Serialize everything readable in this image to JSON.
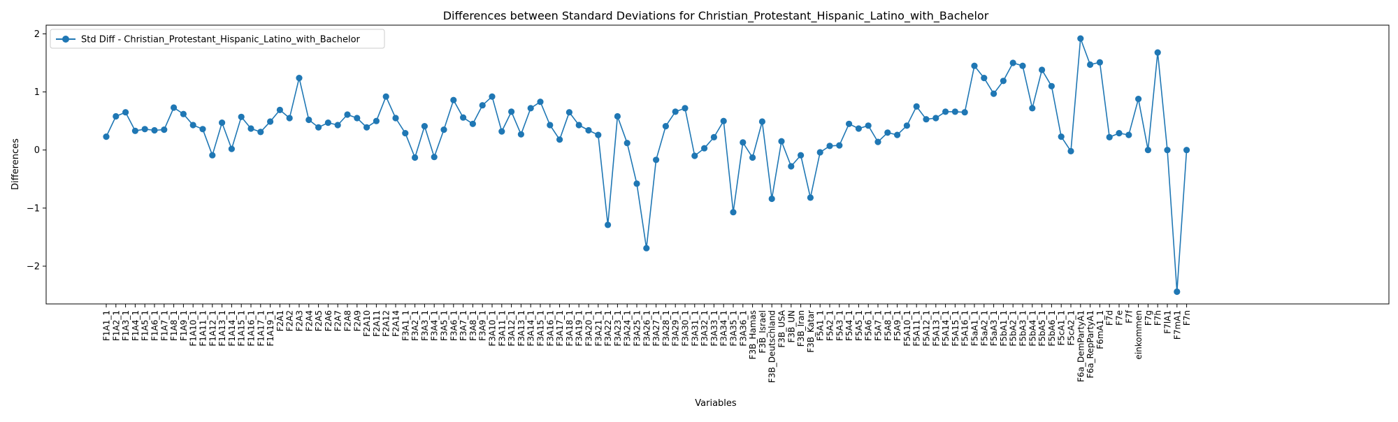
{
  "chart_data": {
    "type": "line",
    "title": "Differences between Standard Deviations for Christian_Protestant_Hispanic_Latino_with_Bachelor",
    "xlabel": "Variables",
    "ylabel": "Differences",
    "ylim": [
      -2.65,
      2.15
    ],
    "yticks": [
      -2,
      -1,
      0,
      1,
      2
    ],
    "ytick_labels": [
      "−2",
      "−1",
      "0",
      "1",
      "2"
    ],
    "grid": false,
    "legend_position": "top-left",
    "color": "#1f77b4",
    "categories": [
      "F1A1_1",
      "F1A2_1",
      "F1A3_1",
      "F1A4_1",
      "F1A5_1",
      "F1A6_1",
      "F1A7_1",
      "F1A8_1",
      "F1A9_1",
      "F1A10_1",
      "F1A11_1",
      "F1A12_1",
      "F1A13_1",
      "F1A14_1",
      "F1A15_1",
      "F1A16_1",
      "F1A17_1",
      "F1A19_1",
      "F2A1",
      "F2A2",
      "F2A3",
      "F2A4",
      "F2A5",
      "F2A6",
      "F2A7",
      "F2A8",
      "F2A9",
      "F2A10",
      "F2A11",
      "F2A12",
      "F2A14",
      "F3A1_1",
      "F3A2_1",
      "F3A3_1",
      "F3A4_1",
      "F3A5_1",
      "F3A6_1",
      "F3A7_1",
      "F3A8_1",
      "F3A9_1",
      "F3A10_1",
      "F3A11_1",
      "F3A12_1",
      "F3A13_1",
      "F3A14_1",
      "F3A15_1",
      "F3A16_1",
      "F3A17_1",
      "F3A18_1",
      "F3A19_1",
      "F3A20_1",
      "F3A21_1",
      "F3A22_1",
      "F3A23_1",
      "F3A24_1",
      "F3A25_1",
      "F3A26_1",
      "F3A27_1",
      "F3A28_1",
      "F3A29_1",
      "F3A30_1",
      "F3A31_1",
      "F3A32_1",
      "F3A33_1",
      "F3A34_1",
      "F3A35_1",
      "F3A36_1",
      "F3B_Hamas",
      "F3B_Israel",
      "F3B_Deutschland",
      "F3B_USA",
      "F3B_UN",
      "F3B_Iran",
      "F3B_Katar",
      "F5A1_1",
      "F5A2_1",
      "F5A3_1",
      "F5A4_1",
      "F5A5_1",
      "F5A6_1",
      "F5A7_1",
      "F5A8_1",
      "F5A9_1",
      "F5A10_1",
      "F5A11_1",
      "F5A12_1",
      "F5A13_1",
      "F5A14_1",
      "F5A15_1",
      "F5A16_1",
      "F5aA1_1",
      "F5aA2_1",
      "F5aA3_1",
      "F5bA1_1",
      "F5bA2_1",
      "F5bA3_1",
      "F5bA4_1",
      "F5bA5_1",
      "F5bA6_1",
      "F5cA1_1",
      "F5cA2_1",
      "F6a_DemPartyA1",
      "F6a_RepPartyA1",
      "F6mA1_1",
      "F7d",
      "F7e",
      "F7f",
      "einkommen",
      "F7g",
      "F7h",
      "F7lA1",
      "F7mA1",
      "F7n"
    ],
    "series": [
      {
        "name": "Std Diff - Christian_Protestant_Hispanic_Latino_with_Bachelor",
        "values": [
          0.23,
          0.58,
          0.65,
          0.33,
          0.36,
          0.34,
          0.35,
          0.73,
          0.62,
          0.43,
          0.36,
          -0.09,
          0.47,
          0.02,
          0.57,
          0.37,
          0.31,
          0.49,
          0.69,
          0.55,
          1.24,
          0.52,
          0.39,
          0.47,
          0.43,
          0.61,
          0.55,
          0.39,
          0.5,
          0.92,
          0.55,
          0.29,
          -0.13,
          0.41,
          -0.12,
          0.35,
          0.86,
          0.56,
          0.45,
          0.77,
          0.92,
          0.32,
          0.66,
          0.27,
          0.72,
          0.83,
          0.43,
          0.18,
          0.65,
          0.43,
          0.34,
          0.26,
          -1.29,
          0.58,
          0.12,
          -0.58,
          -1.69,
          -0.17,
          0.41,
          0.66,
          0.72,
          -0.1,
          0.03,
          0.22,
          0.5,
          -1.07,
          0.13,
          -0.13,
          0.49,
          -0.84,
          0.15,
          -0.28,
          -0.09,
          -0.82,
          -0.04,
          0.07,
          0.08,
          0.45,
          0.37,
          0.42,
          0.14,
          0.3,
          0.26,
          0.42,
          0.75,
          0.53,
          0.55,
          0.66,
          0.66,
          0.65,
          1.45,
          1.24,
          0.97,
          1.19,
          1.5,
          1.45,
          0.72,
          1.38,
          1.1,
          0.23,
          -0.02,
          1.92,
          1.47,
          1.51,
          0.22,
          0.29,
          0.26,
          0.88,
          0.0,
          1.68,
          0.0,
          -2.44,
          0.0
        ]
      }
    ]
  }
}
